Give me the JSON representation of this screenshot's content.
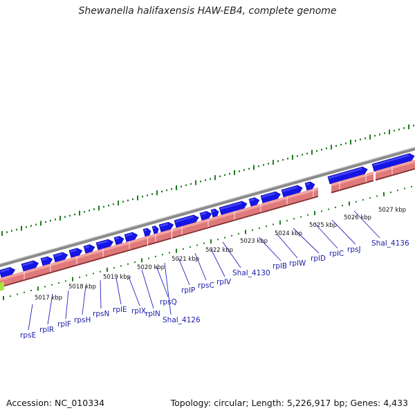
{
  "header": {
    "title": "Shewanella halifaxensis HAW-EB4, complete genome"
  },
  "footer": {
    "accession": "Accession: NC_010334",
    "summary": "Topology: circular; Length: 5,226,917 bp; Genes: 4,433"
  },
  "colors": {
    "backbone": "#8a8a8a",
    "cds_forward": "#1515e6",
    "cds_forward_dark": "#0a0a99",
    "gene_band": "#e07a7a",
    "gene_band_light": "#f2a3a3",
    "gc_skew": "#1d7a1d",
    "label_line": "#2020c0",
    "label_text": "#1a1aa8",
    "highlight": "#a8e03c"
  },
  "kbp_labels": [
    "5017 kbp",
    "5018 kbp",
    "5019 kbp",
    "5020 kbp",
    "5021 kbp",
    "5022 kbp",
    "5023 kbp",
    "5024 kbp",
    "5025 kbp",
    "5026 kbp",
    "5027 kbp"
  ],
  "gene_labels": [
    "rpsE",
    "rplR",
    "rplF",
    "rpsH",
    "rpsN",
    "rplE",
    "rplX",
    "rplN",
    "rpsQ",
    "Shal_4126",
    "rplP",
    "rpsC",
    "rplV",
    "Shal_4130",
    "rplB",
    "rplW",
    "rplD",
    "rplC",
    "rpsJ",
    "Shal_4136"
  ]
}
